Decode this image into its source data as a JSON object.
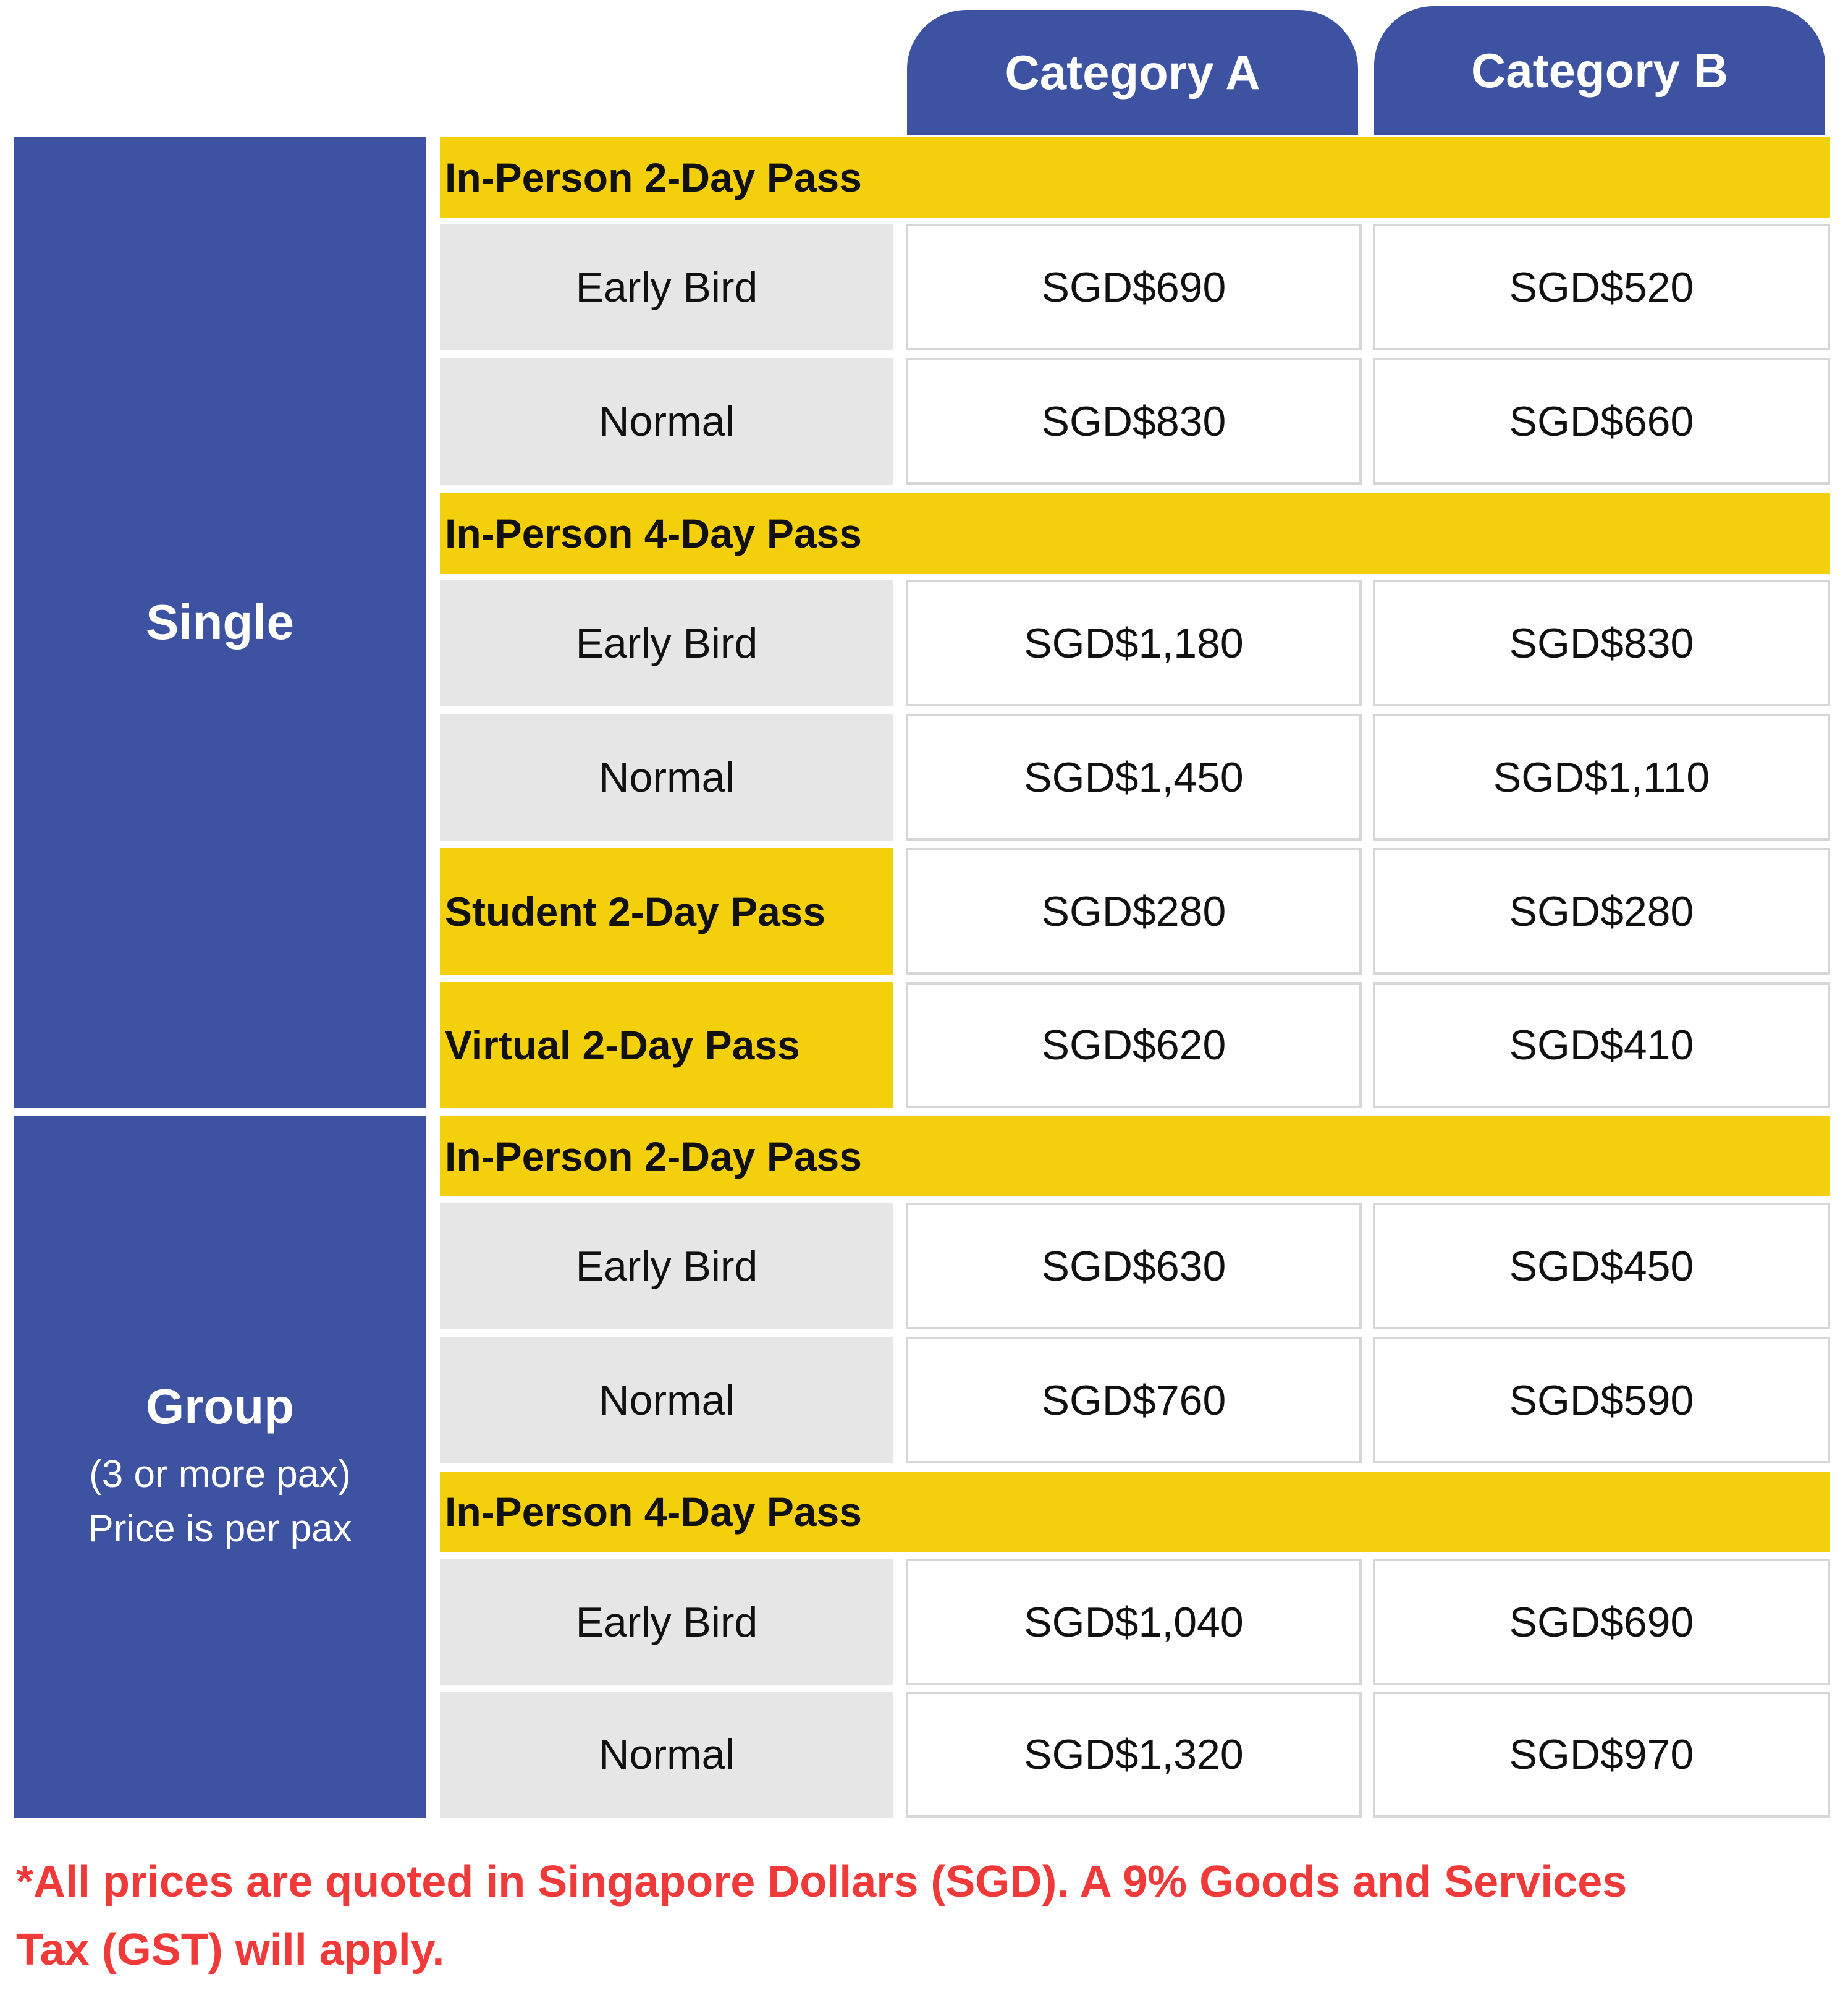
{
  "columns": [
    "Category A",
    "Category B"
  ],
  "single": {
    "label": "Single",
    "pass_2day": {
      "title": "In-Person 2-Day Pass",
      "early_bird": {
        "label": "Early Bird",
        "a": "SGD$690",
        "b": "SGD$520"
      },
      "normal": {
        "label": "Normal",
        "a": "SGD$830",
        "b": "SGD$660"
      }
    },
    "pass_4day": {
      "title": "In-Person 4-Day Pass",
      "early_bird": {
        "label": "Early Bird",
        "a": "SGD$1,180",
        "b": "SGD$830"
      },
      "normal": {
        "label": "Normal",
        "a": "SGD$1,450",
        "b": "SGD$1,110"
      }
    },
    "student": {
      "label": "Student 2-Day Pass",
      "a": "SGD$280",
      "b": "SGD$280"
    },
    "virtual": {
      "label": "Virtual 2-Day Pass",
      "a": "SGD$620",
      "b": "SGD$410"
    }
  },
  "group": {
    "label": "Group",
    "sub1": "(3 or more pax)",
    "sub2": "Price is per pax",
    "pass_2day": {
      "title": "In-Person 2-Day Pass",
      "early_bird": {
        "label": "Early Bird",
        "a": "SGD$630",
        "b": "SGD$450"
      },
      "normal": {
        "label": "Normal",
        "a": "SGD$760",
        "b": "SGD$590"
      }
    },
    "pass_4day": {
      "title": "In-Person 4-Day Pass",
      "early_bird": {
        "label": "Early Bird",
        "a": "SGD$1,040",
        "b": "SGD$690"
      },
      "normal": {
        "label": "Normal",
        "a": "SGD$1,320",
        "b": "SGD$970"
      }
    }
  },
  "footnote": {
    "line1": "*All prices are quoted in Singapore Dollars (SGD). A 9% Goods and Services",
    "line2": "Tax (GST) will apply."
  },
  "colors": {
    "header_blue": "#3d52a0",
    "highlight_yellow": "#f4cf0c",
    "label_grey": "#e6e6e6",
    "note_red": "#f03a3a"
  }
}
